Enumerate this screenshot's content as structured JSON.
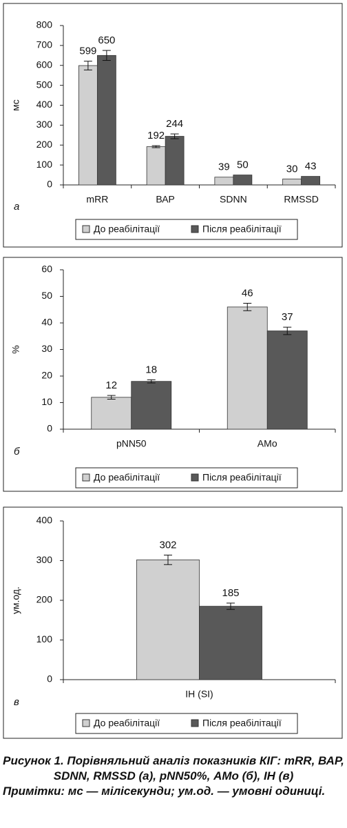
{
  "chart_data": [
    {
      "type": "bar",
      "panel_label": "а",
      "y_label": "мс",
      "categories": [
        "mRR",
        "ВАР",
        "SDNN",
        "RMSSD"
      ],
      "series": [
        {
          "name": "До реабілітації",
          "color": "#d0d0d0",
          "values": [
            599,
            192,
            39,
            30
          ],
          "errors": [
            22,
            5,
            null,
            null
          ]
        },
        {
          "name": "Після реабілітації",
          "color": "#595959",
          "values": [
            650,
            244,
            50,
            43
          ],
          "errors": [
            25,
            12,
            null,
            null
          ]
        }
      ],
      "ylim": [
        0,
        800
      ],
      "yticks": [
        0,
        100,
        200,
        300,
        400,
        500,
        600,
        700,
        800
      ],
      "grid": false,
      "legend": "bottom"
    },
    {
      "type": "bar",
      "panel_label": "б",
      "y_label": "%",
      "categories": [
        "pNN50",
        "АМо"
      ],
      "series": [
        {
          "name": "До реабілітації",
          "color": "#d0d0d0",
          "values": [
            12,
            46
          ],
          "errors": [
            0.7,
            1.4
          ]
        },
        {
          "name": "Після реабілітації",
          "color": "#595959",
          "values": [
            18,
            37
          ],
          "errors": [
            0.6,
            1.4
          ]
        }
      ],
      "ylim": [
        0,
        60
      ],
      "yticks": [
        0,
        10,
        20,
        30,
        40,
        50,
        60
      ],
      "grid": false,
      "legend": "bottom"
    },
    {
      "type": "bar",
      "panel_label": "в",
      "y_label": "ум.од.",
      "categories": [
        "ІН (SI)"
      ],
      "series": [
        {
          "name": "До реабілітації",
          "color": "#d0d0d0",
          "values": [
            302
          ],
          "errors": [
            12
          ]
        },
        {
          "name": "Після реабілітації",
          "color": "#595959",
          "values": [
            185
          ],
          "errors": [
            8
          ]
        }
      ],
      "ylim": [
        0,
        400
      ],
      "yticks": [
        0,
        100,
        200,
        300,
        400
      ],
      "grid": false,
      "legend": "bottom"
    }
  ],
  "caption": {
    "title": "Рисунок 1. Порівняльний аналіз показників КІГ: mRR, ВАР, SDNN, RMSSD (а), pNN50%, АМо (б), ІН (в)",
    "notes": "Примітки: мс — мілісекунди; ум.од. — умовні одиниці."
  }
}
